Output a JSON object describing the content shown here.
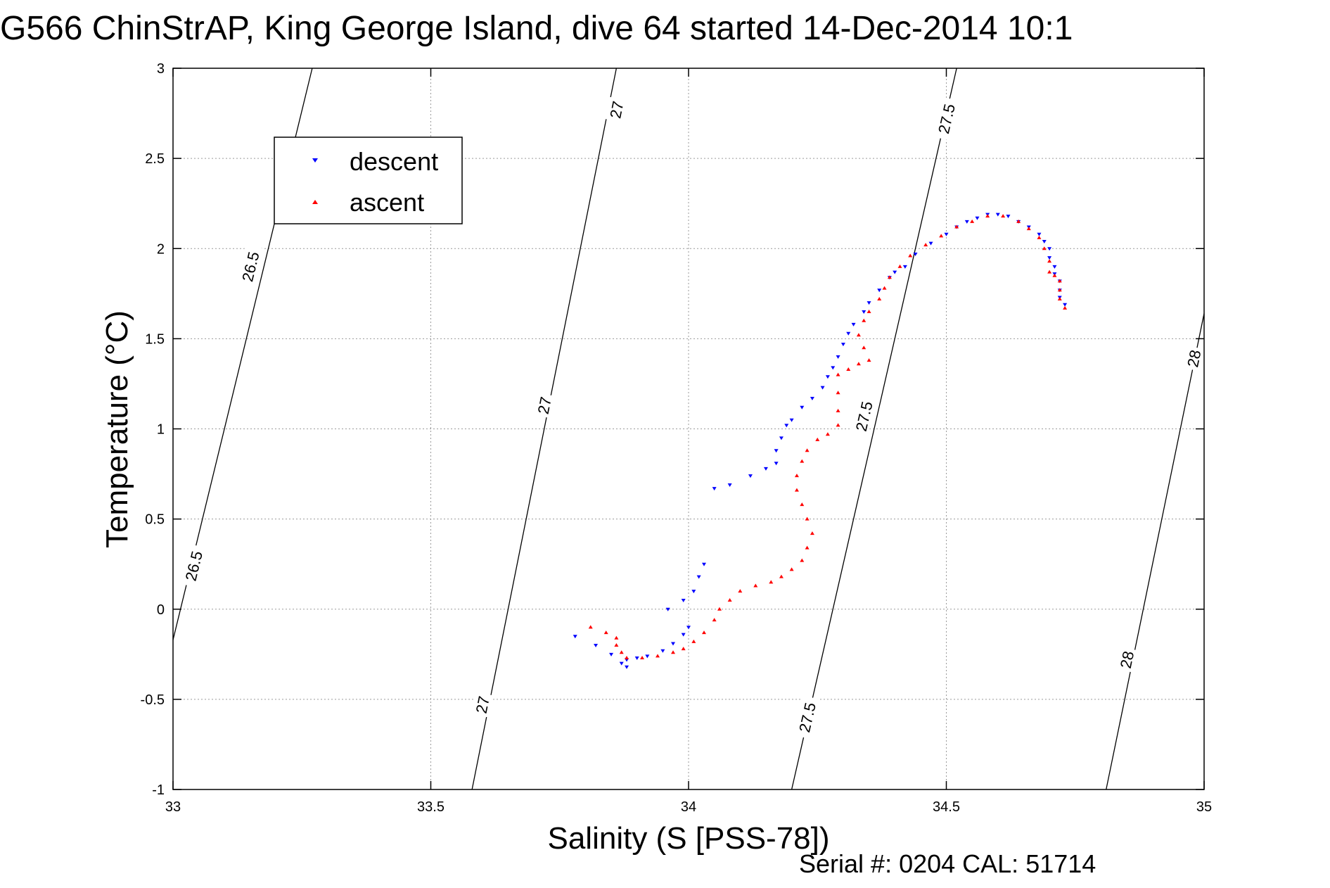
{
  "title": "G566 ChinStrAP, King George Island, dive 64 started 14-Dec-2014 10:1",
  "footer": {
    "serial_label": "Serial #: 0204  CAL: 51714"
  },
  "colors": {
    "descent": "#0000ff",
    "ascent": "#ff0000",
    "grid": "#9a9a9a",
    "axis": "#000000",
    "contour": "#000000"
  },
  "chart_data": {
    "type": "scatter",
    "title": "G566 ChinStrAP, King George Island, dive 64 started 14-Dec-2014 10:1",
    "xlabel": "Salinity (S [PSS-78])",
    "ylabel": "Temperature (°C)",
    "xlim": [
      33,
      35
    ],
    "ylim": [
      -1,
      3
    ],
    "xticks": [
      "33",
      "33.5",
      "34",
      "34.5",
      "35"
    ],
    "yticks": [
      "-1",
      "-0.5",
      "0",
      "0.5",
      "1",
      "1.5",
      "2",
      "2.5",
      "3"
    ],
    "grid": true,
    "legend_position": "top-left",
    "series": [
      {
        "name": "descent",
        "marker": "triangle-down",
        "color": "#0000ff",
        "points": [
          [
            33.78,
            -0.15
          ],
          [
            33.82,
            -0.2
          ],
          [
            33.85,
            -0.25
          ],
          [
            33.87,
            -0.3
          ],
          [
            33.88,
            -0.32
          ],
          [
            33.88,
            -0.28
          ],
          [
            33.9,
            -0.27
          ],
          [
            33.92,
            -0.26
          ],
          [
            33.95,
            -0.23
          ],
          [
            33.97,
            -0.19
          ],
          [
            33.99,
            -0.14
          ],
          [
            34.0,
            -0.1
          ],
          [
            33.96,
            0.0
          ],
          [
            33.99,
            0.05
          ],
          [
            34.01,
            0.1
          ],
          [
            34.02,
            0.18
          ],
          [
            34.03,
            0.25
          ],
          [
            34.05,
            0.67
          ],
          [
            34.08,
            0.69
          ],
          [
            34.12,
            0.74
          ],
          [
            34.15,
            0.78
          ],
          [
            34.17,
            0.81
          ],
          [
            34.17,
            0.88
          ],
          [
            34.18,
            0.95
          ],
          [
            34.19,
            1.02
          ],
          [
            34.2,
            1.05
          ],
          [
            34.22,
            1.12
          ],
          [
            34.24,
            1.17
          ],
          [
            34.26,
            1.23
          ],
          [
            34.27,
            1.29
          ],
          [
            34.28,
            1.34
          ],
          [
            34.29,
            1.4
          ],
          [
            34.3,
            1.47
          ],
          [
            34.31,
            1.53
          ],
          [
            34.32,
            1.58
          ],
          [
            34.34,
            1.65
          ],
          [
            34.35,
            1.7
          ],
          [
            34.37,
            1.77
          ],
          [
            34.39,
            1.84
          ],
          [
            34.4,
            1.87
          ],
          [
            34.42,
            1.9
          ],
          [
            34.44,
            1.97
          ],
          [
            34.47,
            2.03
          ],
          [
            34.5,
            2.08
          ],
          [
            34.52,
            2.12
          ],
          [
            34.54,
            2.15
          ],
          [
            34.56,
            2.17
          ],
          [
            34.58,
            2.19
          ],
          [
            34.6,
            2.19
          ],
          [
            34.62,
            2.18
          ],
          [
            34.64,
            2.15
          ],
          [
            34.66,
            2.12
          ],
          [
            34.68,
            2.08
          ],
          [
            34.69,
            2.04
          ],
          [
            34.7,
            2.0
          ],
          [
            34.7,
            1.95
          ],
          [
            34.71,
            1.9
          ],
          [
            34.71,
            1.86
          ],
          [
            34.72,
            1.82
          ],
          [
            34.72,
            1.77
          ],
          [
            34.72,
            1.73
          ],
          [
            34.73,
            1.69
          ]
        ]
      },
      {
        "name": "ascent",
        "marker": "triangle-up",
        "color": "#ff0000",
        "points": [
          [
            33.81,
            -0.1
          ],
          [
            33.84,
            -0.13
          ],
          [
            33.86,
            -0.16
          ],
          [
            33.86,
            -0.2
          ],
          [
            33.87,
            -0.24
          ],
          [
            33.88,
            -0.27
          ],
          [
            33.91,
            -0.27
          ],
          [
            33.94,
            -0.26
          ],
          [
            33.97,
            -0.24
          ],
          [
            33.99,
            -0.22
          ],
          [
            34.01,
            -0.18
          ],
          [
            34.03,
            -0.13
          ],
          [
            34.05,
            -0.06
          ],
          [
            34.06,
            0.0
          ],
          [
            34.08,
            0.05
          ],
          [
            34.1,
            0.1
          ],
          [
            34.13,
            0.13
          ],
          [
            34.16,
            0.15
          ],
          [
            34.18,
            0.18
          ],
          [
            34.2,
            0.22
          ],
          [
            34.22,
            0.27
          ],
          [
            34.23,
            0.34
          ],
          [
            34.24,
            0.42
          ],
          [
            34.23,
            0.5
          ],
          [
            34.22,
            0.58
          ],
          [
            34.21,
            0.66
          ],
          [
            34.21,
            0.74
          ],
          [
            34.22,
            0.82
          ],
          [
            34.23,
            0.88
          ],
          [
            34.25,
            0.94
          ],
          [
            34.27,
            0.97
          ],
          [
            34.29,
            1.02
          ],
          [
            34.29,
            1.1
          ],
          [
            34.29,
            1.2
          ],
          [
            34.29,
            1.3
          ],
          [
            34.31,
            1.33
          ],
          [
            34.33,
            1.36
          ],
          [
            34.35,
            1.38
          ],
          [
            34.34,
            1.45
          ],
          [
            34.33,
            1.52
          ],
          [
            34.34,
            1.6
          ],
          [
            34.35,
            1.65
          ],
          [
            34.37,
            1.72
          ],
          [
            34.38,
            1.78
          ],
          [
            34.39,
            1.84
          ],
          [
            34.41,
            1.9
          ],
          [
            34.43,
            1.96
          ],
          [
            34.46,
            2.02
          ],
          [
            34.49,
            2.07
          ],
          [
            34.52,
            2.12
          ],
          [
            34.55,
            2.15
          ],
          [
            34.58,
            2.18
          ],
          [
            34.61,
            2.18
          ],
          [
            34.64,
            2.15
          ],
          [
            34.66,
            2.11
          ],
          [
            34.68,
            2.06
          ],
          [
            34.69,
            2.0
          ],
          [
            34.7,
            1.93
          ],
          [
            34.7,
            1.87
          ],
          [
            34.71,
            1.85
          ],
          [
            34.72,
            1.82
          ],
          [
            34.72,
            1.77
          ],
          [
            34.72,
            1.72
          ],
          [
            34.73,
            1.67
          ]
        ]
      }
    ],
    "contours": [
      {
        "level": "26.5",
        "line": [
          [
            33.0,
            -0.17
          ],
          [
            33.27,
            3.0
          ]
        ],
        "labels": [
          {
            "text": "26.5",
            "x": 33.04,
            "y": 0.24
          },
          {
            "text": "26.5",
            "x": 33.15,
            "y": 1.9
          }
        ]
      },
      {
        "level": "27",
        "line": [
          [
            33.58,
            -1.0
          ],
          [
            33.86,
            3.0
          ]
        ],
        "labels": [
          {
            "text": "27",
            "x": 33.6,
            "y": -0.53
          },
          {
            "text": "27",
            "x": 33.72,
            "y": 1.13
          },
          {
            "text": "27",
            "x": 33.86,
            "y": 2.77
          }
        ]
      },
      {
        "level": "27.5",
        "line": [
          [
            34.2,
            -1.0
          ],
          [
            34.52,
            3.0
          ]
        ],
        "labels": [
          {
            "text": "27.5",
            "x": 34.23,
            "y": -0.6
          },
          {
            "text": "27.5",
            "x": 34.34,
            "y": 1.07
          },
          {
            "text": "27.5",
            "x": 34.5,
            "y": 2.72
          }
        ]
      },
      {
        "level": "28",
        "line": [
          [
            34.81,
            -1.0
          ],
          [
            35.0,
            1.64
          ]
        ],
        "labels": [
          {
            "text": "28",
            "x": 34.85,
            "y": -0.28
          },
          {
            "text": "28",
            "x": 34.98,
            "y": 1.39
          }
        ]
      }
    ]
  }
}
